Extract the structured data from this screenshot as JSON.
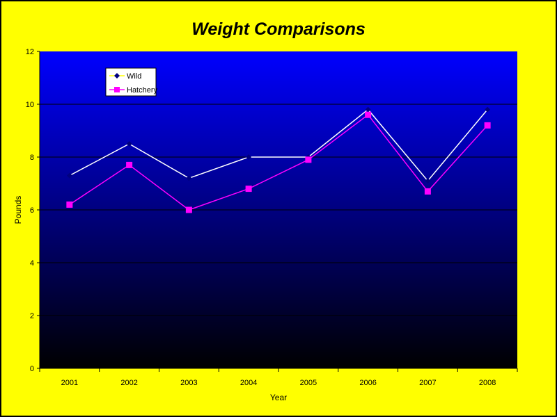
{
  "chart_data": {
    "type": "line",
    "title": "Weight Comparisons",
    "xlabel": "Year",
    "ylabel": "Pounds",
    "categories": [
      "2001",
      "2002",
      "2003",
      "2004",
      "2005",
      "2006",
      "2007",
      "2008"
    ],
    "ylim": [
      0,
      12
    ],
    "yticks": [
      0,
      2,
      4,
      6,
      8,
      10,
      12
    ],
    "grid": "horizontal",
    "legend": "top-left",
    "series": [
      {
        "name": "Wild",
        "values": [
          7.3,
          8.5,
          7.2,
          8.0,
          8.0,
          9.8,
          7.1,
          9.8
        ],
        "line_color": "#ffffff",
        "marker": "diamond",
        "marker_color": "#000080"
      },
      {
        "name": "Hatchery",
        "values": [
          6.2,
          7.7,
          6.0,
          6.8,
          7.9,
          9.6,
          6.7,
          9.2
        ],
        "line_color": "#ff00ff",
        "marker": "square",
        "marker_color": "#ff00ff"
      }
    ],
    "colors": {
      "background": "#ffff00",
      "plot_top": "#0000ff",
      "plot_bottom": "#000000",
      "grid": "#000000"
    }
  }
}
